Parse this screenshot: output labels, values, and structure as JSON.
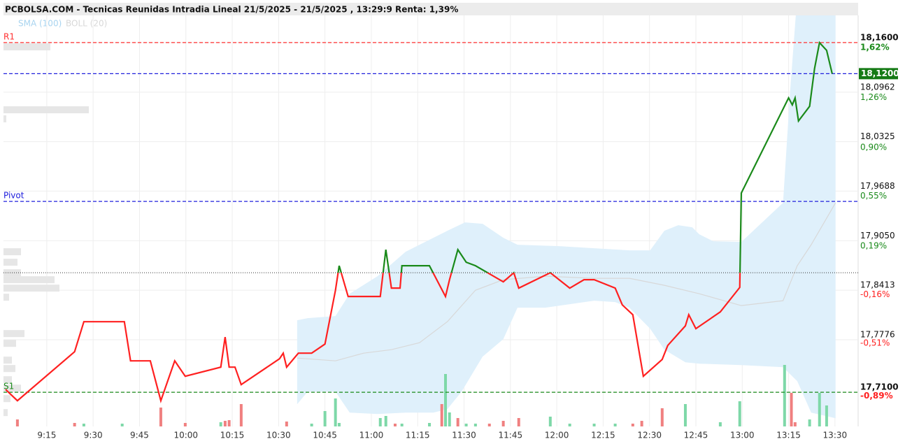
{
  "chart_data": {
    "type": "line",
    "title": "PCBOLSA.COM - Tecnicas Reunidas Intradia Lineal 21/5/2025 - 21/5/2025 , 13:29:9 Renta: 1,39%",
    "legend": [
      {
        "label": "SMA (100)",
        "color": "#a8d4f0"
      },
      {
        "label": "BOLL (20)",
        "color": "#d8d8d8"
      }
    ],
    "xlim": [
      541,
      817.5
    ],
    "xticks": [
      {
        "value": 555,
        "label": "9:15"
      },
      {
        "value": 570,
        "label": "9:30"
      },
      {
        "value": 585,
        "label": "9:45"
      },
      {
        "value": 600,
        "label": "10:00"
      },
      {
        "value": 615,
        "label": "10:15"
      },
      {
        "value": 630,
        "label": "10:30"
      },
      {
        "value": 645,
        "label": "10:45"
      },
      {
        "value": 660,
        "label": "11:00"
      },
      {
        "value": 675,
        "label": "11:15"
      },
      {
        "value": 690,
        "label": "11:30"
      },
      {
        "value": 705,
        "label": "11:45"
      },
      {
        "value": 720,
        "label": "12:00"
      },
      {
        "value": 735,
        "label": "12:15"
      },
      {
        "value": 750,
        "label": "12:30"
      },
      {
        "value": 765,
        "label": "12:45"
      },
      {
        "value": 780,
        "label": "13:00"
      },
      {
        "value": 795,
        "label": "13:15"
      },
      {
        "value": 810,
        "label": "13:30"
      }
    ],
    "ylim": [
      17.666,
      18.195
    ],
    "yticks": [
      {
        "value": 18.16,
        "label": "18,1600"
      },
      {
        "value": 18.0962,
        "label": "18,0962"
      },
      {
        "value": 18.0325,
        "label": "18,0325"
      },
      {
        "value": 17.9688,
        "label": "17,9688"
      },
      {
        "value": 17.905,
        "label": "17,9050"
      },
      {
        "value": 17.8413,
        "label": "17,8413"
      },
      {
        "value": 17.7776,
        "label": "17,7776"
      },
      {
        "value": 17.71,
        "label": "17,7100"
      }
    ],
    "y2lim": [
      -1.144,
      1.816
    ],
    "y2ticks": [
      {
        "value": 1.62,
        "label": "1,62%"
      },
      {
        "value": 1.26,
        "label": "1,26%"
      },
      {
        "value": 0.9,
        "label": "0,90%"
      },
      {
        "value": 0.55,
        "label": "0,55%"
      },
      {
        "value": 0.19,
        "label": "0,19%"
      },
      {
        "value": -0.16,
        "label": "-0,16%"
      },
      {
        "value": -0.51,
        "label": "-0,51%"
      },
      {
        "value": -0.89,
        "label": "-0,89%"
      }
    ],
    "grid": true,
    "up_color": "#1a8a1a",
    "down_color": "#ff2020",
    "reference": 17.8638,
    "current_price": 18.12,
    "current_price_label": "18,1200",
    "levels": [
      {
        "name": "R1",
        "value": 18.16,
        "color": "#ff3030"
      },
      {
        "name": "Pivot",
        "value": 17.9556,
        "color": "#2020dd"
      },
      {
        "name": "S1",
        "value": 17.71,
        "color": "#1a8a1a"
      }
    ],
    "x": [
      541.7,
      545.5,
      564.0,
      567.0,
      580.1,
      582.1,
      588.5,
      591.9,
      596.4,
      599.8,
      611.3,
      612.7,
      614.0,
      615.9,
      617.9,
      630.3,
      631.5,
      632.6,
      636.4,
      640.7,
      645.0,
      648.4,
      649.6,
      652.5,
      662.9,
      664.7,
      666.5,
      669.3,
      669.9,
      678.8,
      684.0,
      685.3,
      688.0,
      690.7,
      693.7,
      702.7,
      706.1,
      707.7,
      717.9,
      724.2,
      728.8,
      732.1,
      738.9,
      741.2,
      744.6,
      748.0,
      754.1,
      755.9,
      761.6,
      762.7,
      765.0,
      772.9,
      779.2,
      779.7,
      795.0,
      796.2,
      797.1,
      798.2,
      801.8,
      803.4,
      805.0,
      807.3,
      809.1
    ],
    "values": [
      17.7135,
      17.6991,
      17.7621,
      17.8008,
      17.8008,
      17.7504,
      17.7504,
      17.6991,
      17.7504,
      17.7306,
      17.7423,
      17.781,
      17.7423,
      17.7423,
      17.7198,
      17.7531,
      17.7603,
      17.7423,
      17.7603,
      17.7603,
      17.772,
      17.8413,
      17.8728,
      17.8332,
      17.8332,
      17.8935,
      17.844,
      17.844,
      17.8728,
      17.8728,
      17.8332,
      17.8548,
      17.8935,
      17.8773,
      17.8728,
      17.8521,
      17.8638,
      17.844,
      17.8638,
      17.844,
      17.8548,
      17.8548,
      17.844,
      17.8224,
      17.8098,
      17.7306,
      17.7522,
      17.7702,
      17.7954,
      17.8098,
      17.7918,
      17.8134,
      17.8449,
      17.9664,
      18.0888,
      18.0798,
      18.0888,
      18.0591,
      18.078,
      18.1266,
      18.1599,
      18.15,
      18.12
    ],
    "boll_upper": {
      "x": [
        636.0,
        639.4,
        648.4,
        653.0,
        662.0,
        671.1,
        680.1,
        684.6,
        690.3,
        696.0,
        702.7,
        707.3,
        720.8,
        732.1,
        743.5,
        750.2,
        754.8,
        759.3,
        763.8,
        766.1,
        770.6,
        779.7,
        793.2,
        795.5,
        797.8,
        810.2
      ],
      "values": [
        17.8026,
        17.8053,
        17.808,
        17.8368,
        17.8593,
        17.8908,
        17.9088,
        17.9178,
        17.9286,
        17.9268,
        17.9088,
        17.8998,
        17.898,
        17.8953,
        17.8926,
        17.8926,
        17.9178,
        17.925,
        17.9223,
        17.9133,
        17.9043,
        17.9034,
        17.9538,
        18.0978,
        18.22,
        18.22
      ]
    },
    "boll_lower": {
      "x": [
        636.0,
        639.4,
        648.4,
        653.0,
        662.0,
        671.1,
        680.1,
        684.6,
        689.2,
        696.0,
        702.7,
        707.3,
        716.3,
        732.1,
        738.9,
        743.5,
        750.2,
        754.8,
        761.6,
        766.1,
        779.7,
        793.2,
        797.8,
        802.3,
        810.2
      ],
      "values": [
        17.6946,
        17.7108,
        17.7108,
        17.6838,
        17.682,
        17.6838,
        17.6838,
        17.6883,
        17.7108,
        17.7558,
        17.7783,
        17.8188,
        17.8188,
        17.8278,
        17.826,
        17.8188,
        17.7918,
        17.7648,
        17.7486,
        17.7468,
        17.745,
        17.7423,
        17.7243,
        17.6838,
        17.6766
      ]
    },
    "sma": {
      "x": [
        636.0,
        648.4,
        657.5,
        666.5,
        675.6,
        684.6,
        693.7,
        702.7,
        716.3,
        732.1,
        743.5,
        754.8,
        766.1,
        779.7,
        793.2,
        797.8,
        802.3,
        810.2
      ],
      "values": [
        17.754,
        17.7504,
        17.7603,
        17.7648,
        17.7738,
        17.8008,
        17.8413,
        17.8548,
        17.8593,
        17.8566,
        17.8566,
        17.8476,
        17.8368,
        17.8215,
        17.8278,
        17.8728,
        17.8998,
        17.9538
      ]
    },
    "volume": {
      "ylim": [
        0,
        100
      ],
      "x": [
        545.5,
        564.0,
        567.0,
        579.4,
        591.9,
        599.8,
        611.3,
        612.7,
        614.0,
        617.9,
        632.6,
        640.7,
        645.0,
        648.4,
        649.6,
        662.9,
        664.7,
        667.7,
        669.9,
        678.8,
        682.8,
        684.0,
        685.3,
        688.0,
        690.7,
        693.7,
        698.2,
        702.7,
        707.7,
        717.9,
        724.2,
        732.1,
        738.9,
        744.6,
        747.5,
        754.1,
        761.6,
        772.9,
        779.2,
        793.7,
        795.9,
        797.1,
        801.8,
        805.0,
        807.3
      ],
      "values": [
        10,
        5,
        4,
        4,
        27,
        5,
        6,
        8,
        9,
        32,
        7,
        4,
        22,
        40,
        5,
        12,
        15,
        4,
        4,
        5,
        32,
        75,
        20,
        12,
        4,
        4,
        4,
        8,
        12,
        14,
        4,
        4,
        4,
        4,
        8,
        26,
        32,
        6,
        36,
        88,
        48,
        6,
        10,
        48,
        30
      ],
      "colors": [
        "#f08080",
        "#f08080",
        "#7ed8a8",
        "#7ed8a8",
        "#f08080",
        "#f08080",
        "#7ed8a8",
        "#f08080",
        "#f08080",
        "#f08080",
        "#f08080",
        "#7ed8a8",
        "#7ed8a8",
        "#7ed8a8",
        "#7ed8a8",
        "#7ed8a8",
        "#7ed8a8",
        "#f08080",
        "#7ed8a8",
        "#7ed8a8",
        "#f08080",
        "#7ed8a8",
        "#7ed8a8",
        "#f08080",
        "#7ed8a8",
        "#7ed8a8",
        "#f08080",
        "#f08080",
        "#f08080",
        "#7ed8a8",
        "#7ed8a8",
        "#7ed8a8",
        "#7ed8a8",
        "#f08080",
        "#f08080",
        "#f08080",
        "#7ed8a8",
        "#7ed8a8",
        "#7ed8a8",
        "#7ed8a8",
        "#f08080",
        "#f08080",
        "#7ed8a8",
        "#7ed8a8",
        "#7ed8a8"
      ]
    },
    "volume_profile": {
      "xlim": [
        0,
        100
      ],
      "prices": [
        18.1545,
        18.0735,
        18.0618,
        17.8908,
        17.8773,
        17.8638,
        17.8548,
        17.844,
        17.8323,
        17.7855,
        17.7729,
        17.7513,
        17.7405,
        17.7261,
        17.7153,
        17.7018,
        17.6838
      ],
      "values": [
        67,
        122,
        4,
        25,
        20,
        25,
        73,
        80,
        8,
        30,
        18,
        12,
        17,
        12,
        25,
        10,
        6
      ]
    }
  }
}
